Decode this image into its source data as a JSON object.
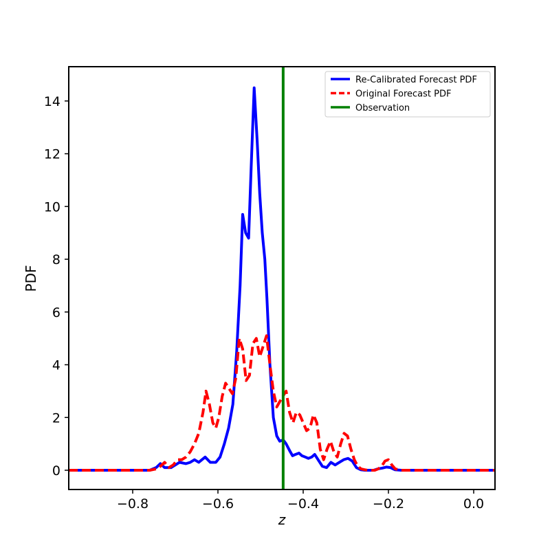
{
  "chart_data": {
    "type": "line",
    "title": "",
    "xlabel": "z",
    "ylabel": "PDF",
    "xlim": [
      -0.95,
      0.05
    ],
    "ylim": [
      -0.73,
      15.3
    ],
    "xticks": [
      -0.8,
      -0.6,
      -0.4,
      -0.2,
      0.0
    ],
    "xtick_labels": [
      "−0.8",
      "−0.6",
      "−0.4",
      "−0.2",
      "0.0"
    ],
    "yticks": [
      0,
      2,
      4,
      6,
      8,
      10,
      12,
      14
    ],
    "ytick_labels": [
      "0",
      "2",
      "4",
      "6",
      "8",
      "10",
      "12",
      "14"
    ],
    "grid": false,
    "legend_position": "top-right",
    "series": [
      {
        "name": "Re-Calibrated Forecast PDF",
        "color": "#0000ff",
        "style": "solid",
        "x": [
          -0.95,
          -0.76,
          -0.745,
          -0.735,
          -0.725,
          -0.71,
          -0.7,
          -0.69,
          -0.675,
          -0.665,
          -0.655,
          -0.645,
          -0.63,
          -0.618,
          -0.605,
          -0.595,
          -0.585,
          -0.575,
          -0.565,
          -0.556,
          -0.548,
          -0.542,
          -0.535,
          -0.528,
          -0.522,
          -0.515,
          -0.508,
          -0.502,
          -0.496,
          -0.49,
          -0.485,
          -0.478,
          -0.47,
          -0.462,
          -0.455,
          -0.447,
          -0.44,
          -0.432,
          -0.425,
          -0.418,
          -0.41,
          -0.403,
          -0.395,
          -0.388,
          -0.38,
          -0.373,
          -0.365,
          -0.355,
          -0.345,
          -0.335,
          -0.325,
          -0.315,
          -0.305,
          -0.295,
          -0.285,
          -0.275,
          -0.265,
          -0.255,
          -0.245,
          -0.235,
          -0.225,
          -0.215,
          -0.205,
          -0.195,
          -0.185,
          -0.17,
          0.05
        ],
        "values": [
          0,
          0,
          0.1,
          0.25,
          0.1,
          0.1,
          0.2,
          0.3,
          0.25,
          0.3,
          0.4,
          0.3,
          0.5,
          0.3,
          0.3,
          0.5,
          1.0,
          1.6,
          2.5,
          4.5,
          7.0,
          9.7,
          9.0,
          8.8,
          11.5,
          14.5,
          12.5,
          10.5,
          9.0,
          8.0,
          6.5,
          4.0,
          2.0,
          1.3,
          1.1,
          1.15,
          1.0,
          0.75,
          0.55,
          0.6,
          0.65,
          0.55,
          0.5,
          0.45,
          0.5,
          0.6,
          0.4,
          0.15,
          0.1,
          0.3,
          0.2,
          0.3,
          0.4,
          0.45,
          0.35,
          0.1,
          0.02,
          0.0,
          0.0,
          0.0,
          0.05,
          0.08,
          0.12,
          0.1,
          0.02,
          0,
          0
        ]
      },
      {
        "name": "Original Forecast PDF",
        "color": "#ff0000",
        "style": "dashed",
        "x": [
          -0.95,
          -0.76,
          -0.745,
          -0.735,
          -0.725,
          -0.715,
          -0.705,
          -0.695,
          -0.685,
          -0.675,
          -0.665,
          -0.655,
          -0.645,
          -0.635,
          -0.628,
          -0.62,
          -0.612,
          -0.605,
          -0.598,
          -0.59,
          -0.582,
          -0.574,
          -0.566,
          -0.558,
          -0.55,
          -0.542,
          -0.534,
          -0.526,
          -0.518,
          -0.51,
          -0.502,
          -0.494,
          -0.486,
          -0.478,
          -0.47,
          -0.462,
          -0.455,
          -0.448,
          -0.44,
          -0.432,
          -0.424,
          -0.416,
          -0.408,
          -0.4,
          -0.392,
          -0.384,
          -0.376,
          -0.368,
          -0.36,
          -0.352,
          -0.344,
          -0.336,
          -0.328,
          -0.32,
          -0.312,
          -0.304,
          -0.296,
          -0.288,
          -0.28,
          -0.272,
          -0.264,
          -0.256,
          -0.248,
          -0.24,
          -0.232,
          -0.224,
          -0.216,
          -0.208,
          -0.2,
          -0.192,
          -0.184,
          -0.17,
          0.05
        ],
        "values": [
          0,
          0,
          0.05,
          0.15,
          0.3,
          0.1,
          0.2,
          0.4,
          0.4,
          0.5,
          0.7,
          1.0,
          1.4,
          2.2,
          3.0,
          2.5,
          1.8,
          1.6,
          2.0,
          2.8,
          3.3,
          3.1,
          2.9,
          3.5,
          5.0,
          4.6,
          3.4,
          3.6,
          4.8,
          5.0,
          4.3,
          4.7,
          5.1,
          4.0,
          3.0,
          2.4,
          2.6,
          2.8,
          3.0,
          2.2,
          1.8,
          2.2,
          2.1,
          1.8,
          1.5,
          1.6,
          2.1,
          1.8,
          0.8,
          0.4,
          0.8,
          1.1,
          0.7,
          0.5,
          1.0,
          1.4,
          1.3,
          0.8,
          0.4,
          0.15,
          0.05,
          0.02,
          0.0,
          0.0,
          0.0,
          0.05,
          0.15,
          0.35,
          0.4,
          0.2,
          0.05,
          0,
          0
        ]
      },
      {
        "name": "Observation",
        "color": "#008000",
        "style": "vline",
        "x_value": -0.447
      }
    ]
  }
}
